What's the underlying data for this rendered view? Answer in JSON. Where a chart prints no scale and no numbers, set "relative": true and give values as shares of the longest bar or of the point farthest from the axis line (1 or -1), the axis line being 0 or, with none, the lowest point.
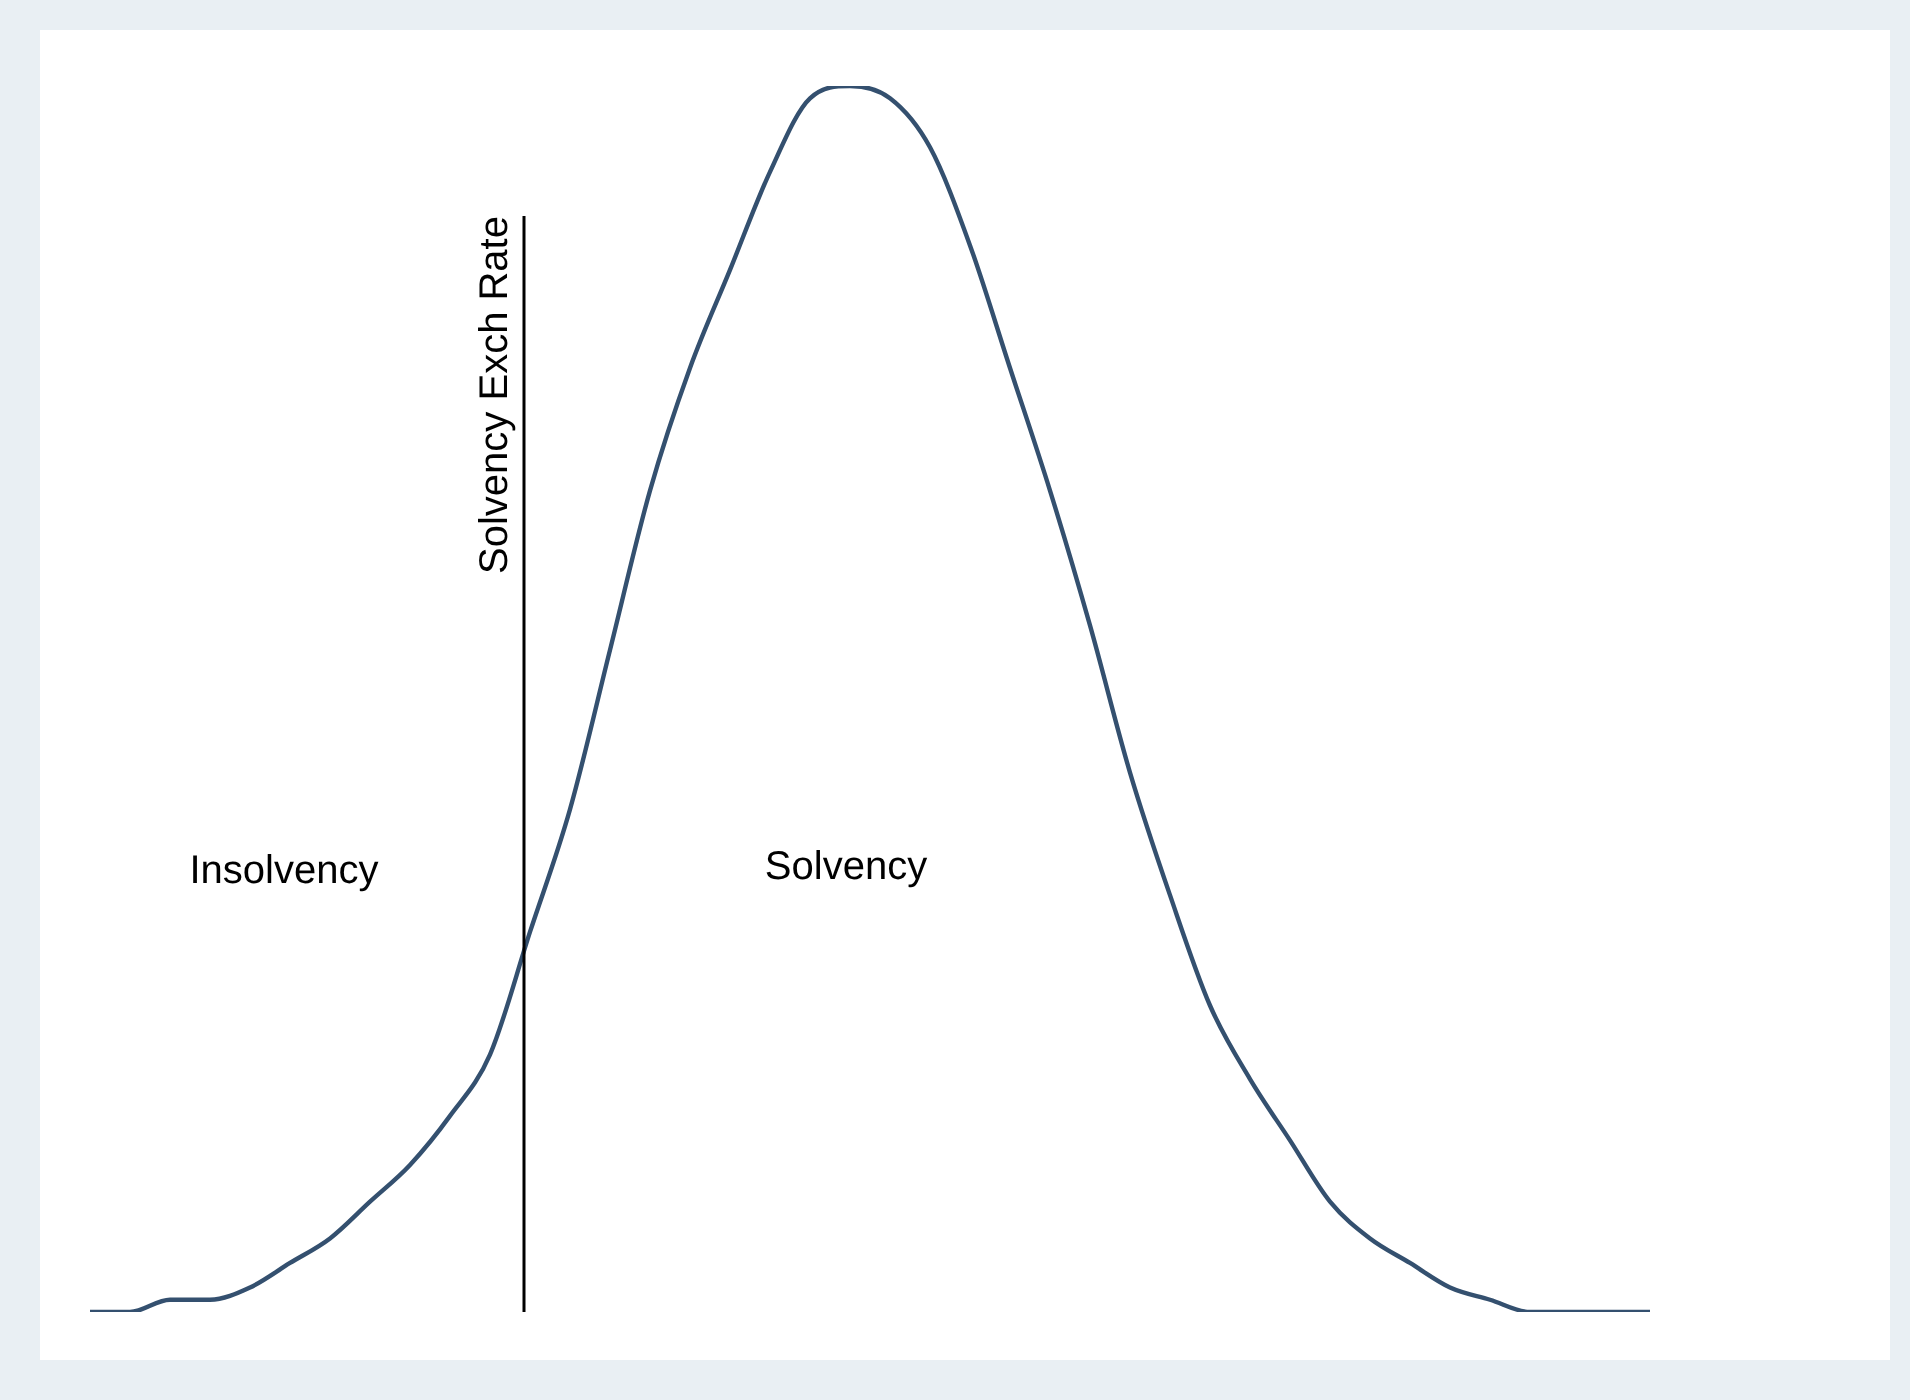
{
  "chart_data": {
    "type": "line",
    "relative": true,
    "legend": false,
    "marker": "none",
    "categories": [
      null,
      null,
      null,
      null,
      null,
      null,
      null,
      null,
      null,
      null,
      null,
      null,
      null,
      null,
      null,
      null,
      null,
      null,
      null,
      null,
      null,
      null,
      null,
      null,
      null,
      null,
      null,
      null,
      null,
      null,
      null,
      null,
      null,
      null,
      null,
      null,
      null,
      null,
      null,
      null
    ],
    "series": [
      {
        "color": "#34506f",
        "values": [
          0,
          0,
          0.01,
          0.01,
          0.02,
          0.04,
          0.06,
          0.09,
          0.12,
          0.16,
          0.21,
          0.31,
          0.41,
          0.54,
          0.67,
          0.77,
          0.85,
          0.93,
          0.99,
          1,
          0.99,
          0.95,
          0.87,
          0.77,
          0.67,
          0.56,
          0.44,
          0.34,
          0.25,
          0.19,
          0.14,
          0.09,
          0.06,
          0.04,
          0.02,
          0.01,
          0,
          0,
          0,
          0
        ]
      }
    ],
    "annotations": [
      "Insolvency",
      "Solvency",
      "Solvency Exch Rate"
    ]
  }
}
